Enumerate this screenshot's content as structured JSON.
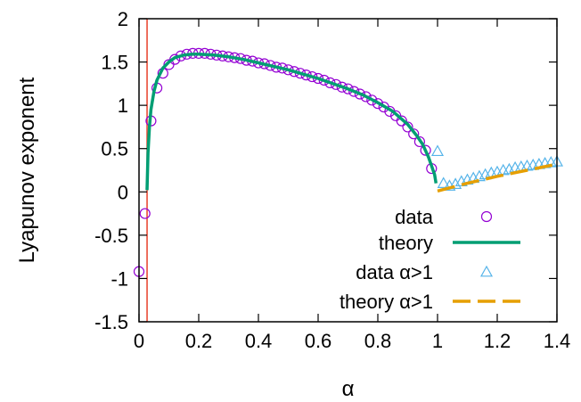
{
  "chart_data": {
    "type": "scatter",
    "xlabel": "α",
    "ylabel": "Lyapunov exponent",
    "xlim": [
      0,
      1.4
    ],
    "ylim": [
      -1.5,
      2
    ],
    "x_ticks": [
      "0",
      "0.2",
      "0.4",
      "0.6",
      "0.8",
      "1",
      "1.2",
      "1.4"
    ],
    "y_ticks": [
      "2",
      "1.5",
      "1",
      "0.5",
      "0",
      "-0.5",
      "-1",
      "-1.5"
    ],
    "grid": false,
    "legend_position": "bottom-right",
    "vertical_line": {
      "x": 0.027,
      "color": "#e8402a"
    },
    "series": [
      {
        "name": "data",
        "kind": "points",
        "marker": "circle",
        "color": "#9400d3",
        "x": [
          0.0,
          0.02,
          0.04,
          0.06,
          0.08,
          0.1,
          0.12,
          0.14,
          0.16,
          0.18,
          0.2,
          0.22,
          0.24,
          0.26,
          0.28,
          0.3,
          0.32,
          0.34,
          0.36,
          0.38,
          0.4,
          0.42,
          0.44,
          0.46,
          0.48,
          0.5,
          0.52,
          0.54,
          0.56,
          0.58,
          0.6,
          0.62,
          0.64,
          0.66,
          0.68,
          0.7,
          0.72,
          0.74,
          0.76,
          0.78,
          0.8,
          0.82,
          0.84,
          0.86,
          0.88,
          0.9,
          0.92,
          0.94,
          0.96,
          0.98
        ],
        "y": [
          -0.92,
          -0.25,
          0.82,
          1.2,
          1.37,
          1.47,
          1.53,
          1.57,
          1.59,
          1.6,
          1.6,
          1.6,
          1.59,
          1.58,
          1.57,
          1.56,
          1.55,
          1.54,
          1.52,
          1.51,
          1.49,
          1.48,
          1.46,
          1.44,
          1.43,
          1.41,
          1.39,
          1.37,
          1.35,
          1.33,
          1.31,
          1.29,
          1.26,
          1.24,
          1.21,
          1.19,
          1.16,
          1.13,
          1.1,
          1.06,
          1.02,
          0.98,
          0.93,
          0.88,
          0.82,
          0.75,
          0.67,
          0.58,
          0.48,
          0.27
        ]
      },
      {
        "name": "theory",
        "kind": "line",
        "color": "#009e73",
        "dash": "",
        "x": [
          0.027,
          0.03,
          0.035,
          0.04,
          0.05,
          0.06,
          0.08,
          0.1,
          0.12,
          0.15,
          0.18,
          0.2,
          0.25,
          0.3,
          0.35,
          0.4,
          0.45,
          0.5,
          0.55,
          0.6,
          0.65,
          0.7,
          0.75,
          0.8,
          0.85,
          0.9,
          0.93,
          0.95,
          0.97,
          0.98,
          0.99,
          0.995
        ],
        "y": [
          0.02,
          0.45,
          0.75,
          0.95,
          1.16,
          1.29,
          1.43,
          1.5,
          1.55,
          1.58,
          1.59,
          1.59,
          1.58,
          1.56,
          1.53,
          1.49,
          1.45,
          1.41,
          1.36,
          1.31,
          1.25,
          1.19,
          1.12,
          1.03,
          0.93,
          0.78,
          0.65,
          0.55,
          0.4,
          0.3,
          0.2,
          0.1
        ]
      },
      {
        "name": "data α>1",
        "kind": "points",
        "marker": "triangle",
        "color": "#56b4e9",
        "x": [
          1.0,
          1.02,
          1.04,
          1.06,
          1.08,
          1.1,
          1.12,
          1.14,
          1.16,
          1.18,
          1.2,
          1.22,
          1.24,
          1.26,
          1.28,
          1.3,
          1.32,
          1.34,
          1.36,
          1.38,
          1.4
        ],
        "y": [
          0.47,
          0.1,
          0.07,
          0.09,
          0.12,
          0.14,
          0.16,
          0.18,
          0.2,
          0.22,
          0.23,
          0.25,
          0.26,
          0.28,
          0.29,
          0.3,
          0.31,
          0.32,
          0.33,
          0.34,
          0.35
        ]
      },
      {
        "name": "theory α>1",
        "kind": "line",
        "color": "#e69f00",
        "dash": "20,8",
        "x": [
          1.0,
          1.1,
          1.2,
          1.3,
          1.4
        ],
        "y": [
          0.01,
          0.1,
          0.18,
          0.25,
          0.32
        ]
      }
    ]
  }
}
